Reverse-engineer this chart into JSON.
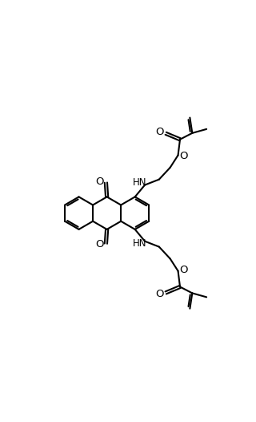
{
  "bg_color": "#ffffff",
  "line_color": "#000000",
  "line_width": 1.5,
  "font_size": 8.5,
  "fig_width": 3.2,
  "fig_height": 5.26,
  "dpi": 100,
  "xlim": [
    0,
    10
  ],
  "ylim": [
    0,
    16.4
  ],
  "bl": 0.82
}
